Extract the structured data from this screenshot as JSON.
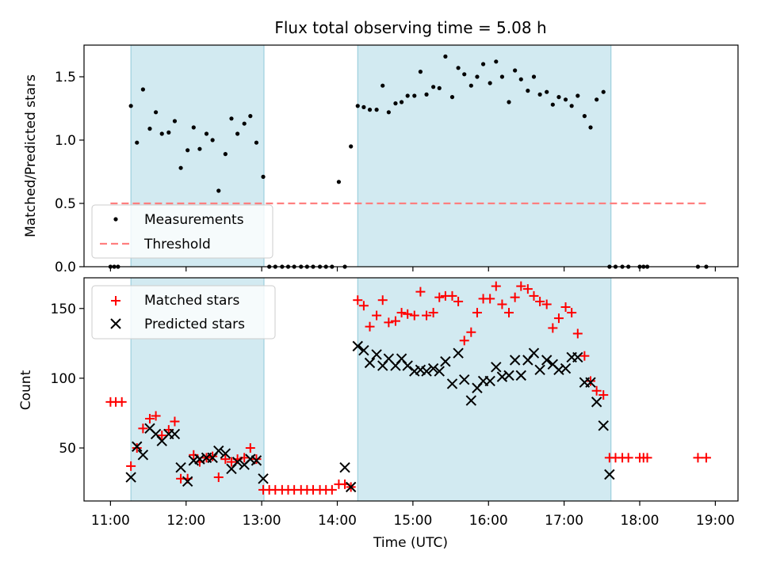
{
  "chart_data": {
    "type": "scatter",
    "title": "Flux total observing time = 5.08 h",
    "xlabel": "Time (UTC)",
    "x_unit": "hours (UTC)",
    "xlim": [
      10.65,
      19.3
    ],
    "x_ticks": [
      11,
      12,
      13,
      14,
      15,
      16,
      17,
      18,
      19
    ],
    "x_tick_labels": [
      "11:00",
      "12:00",
      "13:00",
      "14:00",
      "15:00",
      "16:00",
      "17:00",
      "18:00",
      "19:00"
    ],
    "shaded_intervals": [
      [
        11.27,
        13.03
      ],
      [
        14.27,
        17.62
      ]
    ],
    "shade_color": "#add8e6",
    "panels": [
      {
        "name": "ratio",
        "ylabel": "Matched/Predicted stars",
        "ylim": [
          0,
          1.75
        ],
        "y_ticks": [
          0.0,
          0.5,
          1.0,
          1.5
        ],
        "y_tick_labels": [
          "0.0",
          "0.5",
          "1.0",
          "1.5"
        ],
        "legend_position": "lower-left",
        "series": [
          {
            "name": "Measurements",
            "marker": "dot",
            "color": "#000000",
            "x": [
              11.0,
              11.05,
              11.1,
              11.27,
              11.35,
              11.43,
              11.52,
              11.6,
              11.68,
              11.77,
              11.85,
              11.93,
              12.02,
              12.1,
              12.18,
              12.27,
              12.35,
              12.43,
              12.52,
              12.6,
              12.68,
              12.77,
              12.85,
              12.93,
              13.02,
              13.1,
              13.18,
              13.27,
              13.35,
              13.43,
              13.52,
              13.6,
              13.68,
              13.77,
              13.85,
              13.93,
              14.02,
              14.1,
              14.18,
              14.27,
              14.35,
              14.43,
              14.52,
              14.6,
              14.68,
              14.77,
              14.85,
              14.93,
              15.02,
              15.1,
              15.18,
              15.27,
              15.35,
              15.43,
              15.52,
              15.6,
              15.68,
              15.77,
              15.85,
              15.93,
              16.02,
              16.1,
              16.18,
              16.27,
              16.35,
              16.43,
              16.52,
              16.6,
              16.68,
              16.77,
              16.85,
              16.93,
              17.02,
              17.1,
              17.18,
              17.27,
              17.35,
              17.43,
              17.52,
              17.6,
              17.68,
              17.77,
              17.85,
              18.0,
              18.05,
              18.1,
              18.77,
              18.88
            ],
            "y": [
              0,
              0,
              0,
              1.27,
              0.98,
              1.4,
              1.09,
              1.22,
              1.05,
              1.06,
              1.15,
              0.78,
              0.92,
              1.1,
              0.93,
              1.05,
              1.0,
              0.6,
              0.89,
              1.17,
              1.05,
              1.13,
              1.19,
              0.98,
              0.71,
              0,
              0,
              0,
              0,
              0,
              0,
              0,
              0,
              0,
              0,
              0,
              0.67,
              0,
              0.95,
              1.27,
              1.26,
              1.24,
              1.24,
              1.43,
              1.22,
              1.29,
              1.3,
              1.35,
              1.35,
              1.54,
              1.36,
              1.42,
              1.41,
              1.66,
              1.34,
              1.57,
              1.52,
              1.43,
              1.5,
              1.6,
              1.45,
              1.62,
              1.5,
              1.3,
              1.55,
              1.48,
              1.39,
              1.5,
              1.36,
              1.38,
              1.28,
              1.34,
              1.32,
              1.27,
              1.35,
              1.19,
              1.1,
              1.32,
              1.38,
              0,
              0,
              0,
              0,
              0,
              0,
              0,
              0,
              0
            ]
          },
          {
            "name": "Threshold",
            "style": "dashed",
            "color": "#ff7f7f",
            "x": [
              11.0,
              18.88
            ],
            "y": [
              0.5,
              0.5
            ]
          }
        ]
      },
      {
        "name": "counts",
        "ylabel": "Count",
        "ylim": [
          12,
          172
        ],
        "y_ticks": [
          50,
          100,
          150
        ],
        "y_tick_labels": [
          "50",
          "100",
          "150"
        ],
        "legend_position": "top-left",
        "series": [
          {
            "name": "Matched stars",
            "marker": "plus",
            "color": "#ff0000",
            "x": [
              11.0,
              11.07,
              11.15,
              11.27,
              11.35,
              11.43,
              11.52,
              11.6,
              11.68,
              11.77,
              11.85,
              11.93,
              12.02,
              12.1,
              12.18,
              12.27,
              12.35,
              12.43,
              12.52,
              12.6,
              12.68,
              12.77,
              12.85,
              12.93,
              13.02,
              13.1,
              13.18,
              13.27,
              13.35,
              13.43,
              13.52,
              13.6,
              13.68,
              13.77,
              13.85,
              13.93,
              14.02,
              14.1,
              14.18,
              14.27,
              14.35,
              14.43,
              14.52,
              14.6,
              14.68,
              14.77,
              14.85,
              14.93,
              15.02,
              15.1,
              15.18,
              15.27,
              15.35,
              15.43,
              15.52,
              15.6,
              15.68,
              15.77,
              15.85,
              15.93,
              16.02,
              16.1,
              16.18,
              16.27,
              16.35,
              16.43,
              16.52,
              16.6,
              16.68,
              16.77,
              16.85,
              16.93,
              17.02,
              17.1,
              17.18,
              17.27,
              17.35,
              17.43,
              17.52,
              17.6,
              17.68,
              17.77,
              17.85,
              18.0,
              18.05,
              18.1,
              18.77,
              18.88
            ],
            "y": [
              83,
              83,
              83,
              37,
              50,
              64,
              71,
              73,
              59,
              63,
              69,
              28,
              28,
              45,
              40,
              43,
              44,
              29,
              42,
              40,
              42,
              43,
              50,
              42,
              20,
              20,
              20,
              20,
              20,
              20,
              20,
              20,
              20,
              20,
              20,
              20,
              24,
              24,
              22,
              156,
              152,
              137,
              145,
              156,
              140,
              141,
              147,
              146,
              145,
              162,
              145,
              147,
              158,
              159,
              159,
              155,
              127,
              133,
              147,
              157,
              157,
              166,
              153,
              147,
              158,
              166,
              164,
              159,
              155,
              153,
              136,
              143,
              151,
              147,
              132,
              116,
              98,
              91,
              88,
              43,
              43,
              43,
              43,
              43,
              43,
              43,
              43,
              43
            ]
          },
          {
            "name": "Predicted stars",
            "marker": "x",
            "color": "#000000",
            "x": [
              11.27,
              11.35,
              11.43,
              11.52,
              11.6,
              11.68,
              11.77,
              11.85,
              11.93,
              12.02,
              12.1,
              12.18,
              12.27,
              12.35,
              12.43,
              12.52,
              12.6,
              12.68,
              12.77,
              12.85,
              12.93,
              13.02,
              14.1,
              14.18,
              14.27,
              14.35,
              14.43,
              14.52,
              14.6,
              14.68,
              14.77,
              14.85,
              14.93,
              15.02,
              15.1,
              15.18,
              15.27,
              15.35,
              15.43,
              15.52,
              15.6,
              15.68,
              15.77,
              15.85,
              15.93,
              16.02,
              16.1,
              16.18,
              16.27,
              16.35,
              16.43,
              16.52,
              16.6,
              16.68,
              16.77,
              16.85,
              16.93,
              17.02,
              17.1,
              17.18,
              17.27,
              17.35,
              17.43,
              17.52,
              17.6
            ],
            "y": [
              29,
              51,
              45,
              64,
              60,
              55,
              60,
              60,
              36,
              26,
              41,
              42,
              43,
              43,
              48,
              46,
              35,
              40,
              38,
              42,
              41,
              28,
              36,
              22,
              123,
              120,
              111,
              117,
              109,
              114,
              109,
              114,
              109,
              105,
              106,
              105,
              107,
              105,
              112,
              96,
              118,
              99,
              84,
              93,
              98,
              98,
              108,
              101,
              102,
              113,
              102,
              113,
              118,
              106,
              113,
              110,
              106,
              107,
              115,
              115,
              97,
              97,
              83,
              66,
              31
            ]
          }
        ]
      }
    ]
  }
}
